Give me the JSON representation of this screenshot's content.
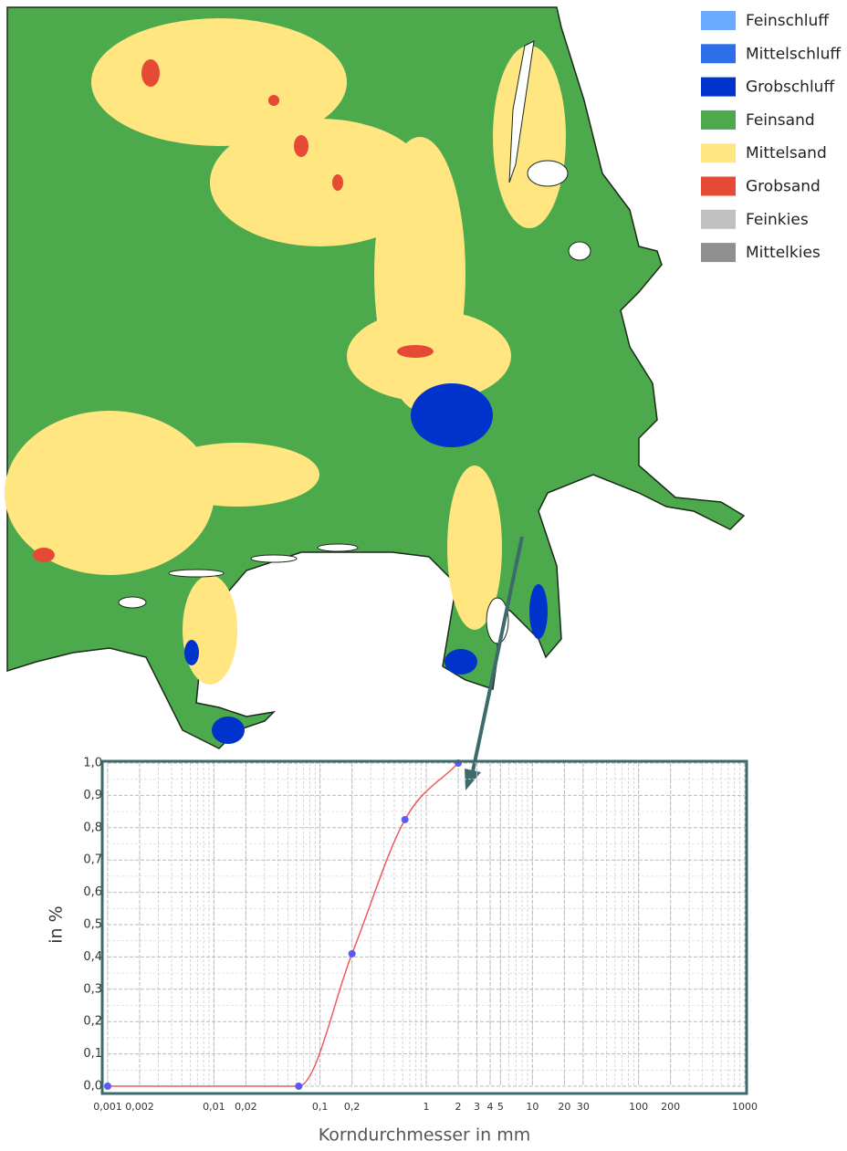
{
  "legend": {
    "items": [
      {
        "name": "Feinschluff",
        "color": "#6aaaff"
      },
      {
        "name": "Mittelschluff",
        "color": "#2d6fe8"
      },
      {
        "name": "Grobschluff",
        "color": "#0033cc"
      },
      {
        "name": "Feinsand",
        "color": "#4caa4c"
      },
      {
        "name": "Mittelsand",
        "color": "#ffe680"
      },
      {
        "name": "Grobsand",
        "color": "#e64a35"
      },
      {
        "name": "Feinkies",
        "color": "#c0c0c0"
      },
      {
        "name": "Mittelkies",
        "color": "#909090"
      }
    ]
  },
  "chart_data": {
    "type": "line",
    "xscale": "log",
    "grid": true,
    "x": [
      0.001,
      0.063,
      0.2,
      0.63,
      2
    ],
    "values": [
      0,
      0,
      0.41,
      0.825,
      1.0
    ],
    "color": "#f05a5a",
    "marker_color": "#5a5af5",
    "xlabel": "Korndurchmesser in mm",
    "ylabel": "in %",
    "xlim": [
      0.001,
      1000
    ],
    "ylim": [
      0,
      1
    ],
    "xticks": [
      {
        "value": 0.001,
        "label": "0,001"
      },
      {
        "value": 0.002,
        "label": "0,002"
      },
      {
        "value": 0.01,
        "label": "0,01"
      },
      {
        "value": 0.02,
        "label": "0,02"
      },
      {
        "value": 0.1,
        "label": "0,1"
      },
      {
        "value": 0.2,
        "label": "0,2"
      },
      1,
      2,
      3,
      4,
      5,
      10,
      20,
      30,
      100,
      200,
      1000
    ],
    "yticks": [
      {
        "value": 0,
        "label": "0,0"
      },
      {
        "value": 0.1,
        "label": "0,1"
      },
      {
        "value": 0.2,
        "label": "0,2"
      },
      {
        "value": 0.3,
        "label": "0,3"
      },
      {
        "value": 0.4,
        "label": "0,4"
      },
      {
        "value": 0.5,
        "label": "0,5"
      },
      {
        "value": 0.6,
        "label": "0,6"
      },
      {
        "value": 0.7,
        "label": "0,7"
      },
      {
        "value": 0.8,
        "label": "0,8"
      },
      {
        "value": 0.9,
        "label": "0,9"
      },
      {
        "value": 1,
        "label": "1,0"
      }
    ]
  }
}
